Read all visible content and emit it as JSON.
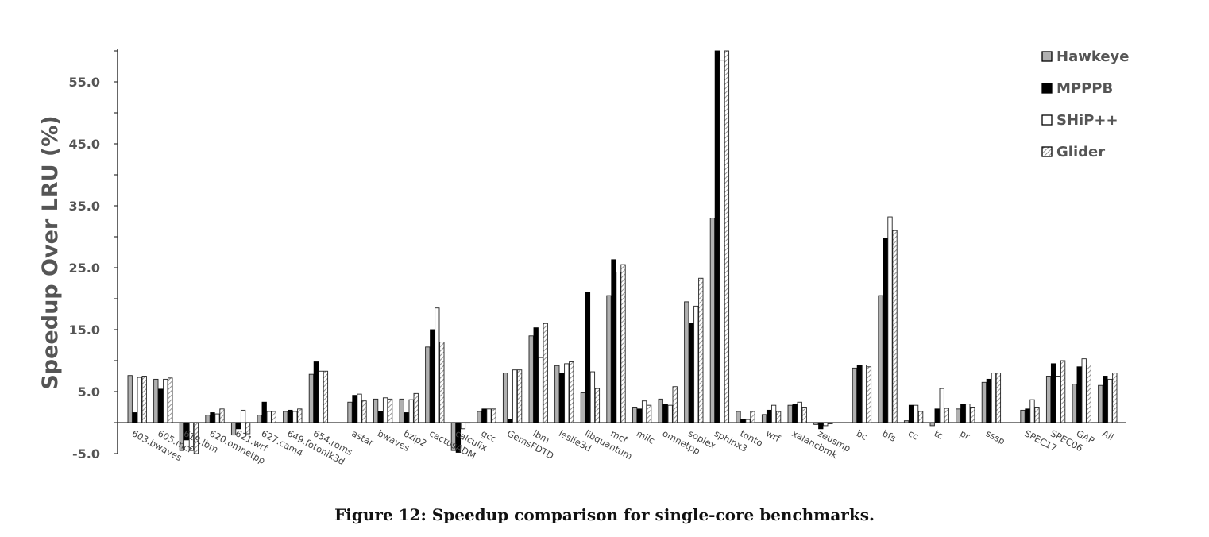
{
  "caption": "Figure 12: Speedup comparison for single-core benchmarks.",
  "chart_data": {
    "type": "bar",
    "ylabel": "Speedup Over LRU (%)",
    "ylim": [
      -5.0,
      60.0
    ],
    "yticks": [
      "-5.0",
      "5.0",
      "15.0",
      "25.0",
      "35.0",
      "45.0",
      "55.0"
    ],
    "yticks_values": [
      -5,
      5,
      15,
      25,
      35,
      45,
      55
    ],
    "legend_position": "top-right",
    "colors": {
      "Hawkeye": "#b0b0b0",
      "MPPPB": "#000000",
      "SHiP++": "#ffffff",
      "Glider": "hatched"
    },
    "groups": [
      [
        "603.bwaves",
        "605.mcf",
        "619.lbm",
        "620.omnetpp",
        "621.wrf",
        "627.cam4",
        "649.fotonik3d",
        "654.roms"
      ],
      [
        "astar",
        "bwaves",
        "bzip2",
        "cactusADM",
        "calculix",
        "gcc",
        "GemsFDTD",
        "lbm",
        "leslie3d",
        "libquantum",
        "mcf",
        "milc",
        "omnetpp",
        "soplex",
        "sphinx3",
        "tonto",
        "wrf",
        "xalancbmk",
        "zeusmp"
      ],
      [
        "bc",
        "bfs",
        "cc",
        "tc",
        "pr",
        "sssp"
      ],
      [
        "SPEC17",
        "SPEC06",
        "GAP",
        "All"
      ]
    ],
    "categories": [
      "603.bwaves",
      "605.mcf",
      "619.lbm",
      "620.omnetpp",
      "621.wrf",
      "627.cam4",
      "649.fotonik3d",
      "654.roms",
      "astar",
      "bwaves",
      "bzip2",
      "cactusADM",
      "calculix",
      "gcc",
      "GemsFDTD",
      "lbm",
      "leslie3d",
      "libquantum",
      "mcf",
      "milc",
      "omnetpp",
      "soplex",
      "sphinx3",
      "tonto",
      "wrf",
      "xalancbmk",
      "zeusmp",
      "bc",
      "bfs",
      "cc",
      "tc",
      "pr",
      "sssp",
      "SPEC17",
      "SPEC06",
      "GAP",
      "All"
    ],
    "series": [
      {
        "name": "Hawkeye",
        "values": [
          7.6,
          7.0,
          -4.5,
          1.2,
          -2.0,
          1.2,
          1.8,
          7.8,
          3.3,
          3.8,
          3.8,
          12.2,
          -4.5,
          1.8,
          8.0,
          14.0,
          9.2,
          4.8,
          20.5,
          2.5,
          3.8,
          19.5,
          33.0,
          1.8,
          1.3,
          2.8,
          -0.3,
          8.8,
          20.5,
          0.3,
          -0.5,
          2.2,
          6.5,
          2.0,
          7.5,
          6.2,
          6.0
        ]
      },
      {
        "name": "MPPPB",
        "values": [
          1.6,
          5.4,
          -2.8,
          1.6,
          -1.0,
          3.3,
          2.0,
          9.8,
          4.4,
          1.8,
          1.6,
          15.0,
          -4.8,
          2.2,
          0.5,
          15.3,
          8.0,
          21.0,
          26.3,
          2.2,
          3.0,
          16.0,
          60.0,
          0.5,
          2.0,
          3.0,
          -1.0,
          9.2,
          29.8,
          2.8,
          2.2,
          3.0,
          7.0,
          2.2,
          9.5,
          9.0,
          7.5
        ]
      },
      {
        "name": "SHiP++",
        "values": [
          7.3,
          7.0,
          -4.5,
          1.4,
          2.0,
          1.8,
          1.8,
          8.3,
          4.6,
          4.0,
          3.7,
          18.5,
          -1.0,
          2.2,
          8.5,
          10.5,
          9.5,
          8.2,
          24.3,
          3.5,
          2.8,
          18.8,
          58.5,
          0.5,
          2.8,
          3.3,
          -0.5,
          9.3,
          33.2,
          2.8,
          5.5,
          3.0,
          8.0,
          3.7,
          7.5,
          10.3,
          7.0
        ]
      },
      {
        "name": "Glider",
        "values": [
          7.5,
          7.2,
          -5.0,
          2.2,
          -1.8,
          1.8,
          2.2,
          8.3,
          3.5,
          3.8,
          4.7,
          13.0,
          0.0,
          2.2,
          8.5,
          16.0,
          9.8,
          5.5,
          25.5,
          2.8,
          5.8,
          23.3,
          60.0,
          1.8,
          1.8,
          2.5,
          -0.2,
          9.0,
          31.0,
          1.8,
          2.3,
          2.5,
          8.0,
          2.5,
          10.0,
          9.3,
          8.0
        ]
      }
    ]
  }
}
